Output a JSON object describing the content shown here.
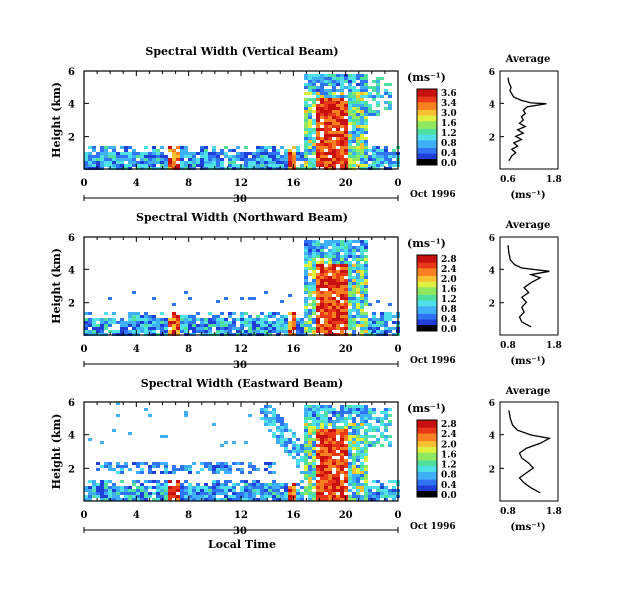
{
  "chart_data": [
    {
      "type": "heatmap",
      "title": "Spectral Width (Vertical Beam)",
      "ylabel": "Height (km)",
      "x_ticks": [
        "0",
        "4",
        "8",
        "12",
        "16",
        "20",
        "0"
      ],
      "date_label": "30",
      "date_suffix": "Oct 1996",
      "colorbar": {
        "label": "(ms⁻¹)",
        "ticks": [
          "3.6",
          "3.4",
          "3.0",
          "1.6",
          "1.2",
          "0.8",
          "0.4",
          "0.0"
        ]
      },
      "profile": {
        "title": "Average",
        "xlabel": "(ms⁻¹)",
        "x_ticks": [
          "0.6",
          "1.8"
        ],
        "y_ticks": [
          "6",
          "4",
          "2"
        ],
        "points": [
          [
            0.62,
            0.5
          ],
          [
            0.7,
            0.8
          ],
          [
            0.8,
            1.0
          ],
          [
            0.7,
            1.2
          ],
          [
            0.85,
            1.4
          ],
          [
            0.75,
            1.6
          ],
          [
            0.95,
            1.8
          ],
          [
            0.8,
            2.0
          ],
          [
            1.0,
            2.2
          ],
          [
            0.85,
            2.4
          ],
          [
            1.05,
            2.6
          ],
          [
            0.9,
            2.8
          ],
          [
            1.0,
            3.0
          ],
          [
            0.95,
            3.2
          ],
          [
            1.05,
            3.4
          ],
          [
            1.0,
            3.6
          ],
          [
            1.1,
            3.8
          ],
          [
            1.6,
            4.0
          ],
          [
            1.2,
            4.05
          ],
          [
            0.95,
            4.2
          ],
          [
            0.75,
            4.4
          ],
          [
            0.7,
            4.6
          ],
          [
            0.65,
            4.8
          ],
          [
            0.68,
            5.0
          ],
          [
            0.62,
            5.3
          ],
          [
            0.6,
            5.6
          ]
        ]
      }
    },
    {
      "type": "heatmap",
      "title": "Spectral Width (Northward Beam)",
      "ylabel": "Height (km)",
      "x_ticks": [
        "0",
        "4",
        "8",
        "12",
        "16",
        "20",
        "0"
      ],
      "date_label": "30",
      "date_suffix": "Oct 1996",
      "colorbar": {
        "label": "(ms⁻¹)",
        "ticks": [
          "2.8",
          "2.4",
          "2.0",
          "1.6",
          "1.2",
          "0.8",
          "0.4",
          "0.0"
        ]
      },
      "profile": {
        "title": "Average",
        "xlabel": "(ms⁻¹)",
        "x_ticks": [
          "0.8",
          "1.8"
        ],
        "y_ticks": [
          "6",
          "4",
          "2"
        ],
        "points": [
          [
            1.3,
            0.5
          ],
          [
            1.1,
            0.8
          ],
          [
            1.05,
            1.1
          ],
          [
            1.15,
            1.4
          ],
          [
            1.1,
            1.7
          ],
          [
            1.2,
            2.0
          ],
          [
            1.1,
            2.3
          ],
          [
            1.25,
            2.6
          ],
          [
            1.15,
            2.9
          ],
          [
            1.3,
            3.2
          ],
          [
            1.5,
            3.5
          ],
          [
            1.3,
            3.7
          ],
          [
            1.7,
            3.9
          ],
          [
            1.1,
            4.1
          ],
          [
            0.95,
            4.3
          ],
          [
            0.85,
            4.6
          ],
          [
            0.82,
            5.0
          ],
          [
            0.8,
            5.5
          ]
        ]
      }
    },
    {
      "type": "heatmap",
      "title": "Spectral Width (Eastward Beam)",
      "ylabel": "Height (km)",
      "x_ticks": [
        "0",
        "4",
        "8",
        "12",
        "16",
        "20",
        "0"
      ],
      "date_label": "30",
      "date_suffix": "Oct 1996",
      "xlabel": "Local Time",
      "colorbar": {
        "label": "(ms⁻¹)",
        "ticks": [
          "2.8",
          "2.4",
          "2.0",
          "1.6",
          "1.2",
          "0.8",
          "0.4",
          "0.0"
        ]
      },
      "profile": {
        "title": "Average",
        "xlabel": "(ms⁻¹)",
        "x_ticks": [
          "0.8",
          "1.8"
        ],
        "y_ticks": [
          "6",
          "4",
          "2"
        ],
        "points": [
          [
            1.5,
            0.5
          ],
          [
            1.3,
            0.8
          ],
          [
            1.15,
            1.1
          ],
          [
            1.05,
            1.4
          ],
          [
            1.2,
            1.7
          ],
          [
            1.35,
            2.0
          ],
          [
            1.25,
            2.3
          ],
          [
            1.1,
            2.6
          ],
          [
            1.05,
            2.9
          ],
          [
            1.2,
            3.2
          ],
          [
            1.5,
            3.5
          ],
          [
            1.7,
            3.8
          ],
          [
            1.3,
            4.0
          ],
          [
            1.0,
            4.3
          ],
          [
            0.9,
            4.6
          ],
          [
            0.85,
            5.0
          ],
          [
            0.82,
            5.5
          ]
        ]
      }
    }
  ]
}
